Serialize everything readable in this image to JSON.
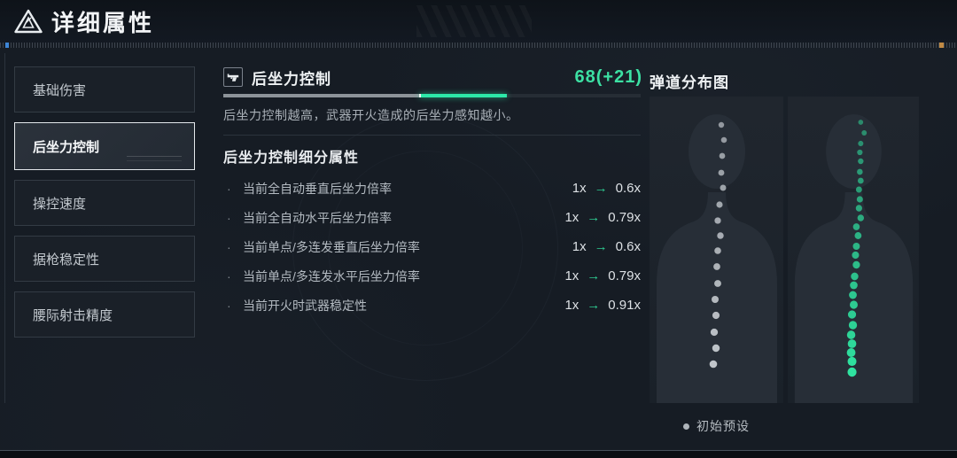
{
  "header": {
    "title": "详细属性"
  },
  "sidebar": {
    "items": [
      {
        "label": "基础伤害",
        "selected": false
      },
      {
        "label": "后坐力控制",
        "selected": true
      },
      {
        "label": "操控速度",
        "selected": false
      },
      {
        "label": "据枪稳定性",
        "selected": false
      },
      {
        "label": "腰际射击精度",
        "selected": false
      }
    ]
  },
  "main": {
    "stat": {
      "icon": "pistol-icon",
      "title": "后坐力控制",
      "value": 68,
      "bonus": 21,
      "max": 100,
      "value_label": "68(+21)",
      "description": "后坐力控制越高，武器开火造成的后坐力感知越小。"
    },
    "details": {
      "title": "后坐力控制细分属性",
      "bullet_glyph": "·",
      "arrow_glyph": "→",
      "rows": [
        {
          "label": "当前全自动垂直后坐力倍率",
          "from": "1x",
          "to": "0.6x"
        },
        {
          "label": "当前全自动水平后坐力倍率",
          "from": "1x",
          "to": "0.79x"
        },
        {
          "label": "当前单点/多连发垂直后坐力倍率",
          "from": "1x",
          "to": "0.6x"
        },
        {
          "label": "当前单点/多连发水平后坐力倍率",
          "from": "1x",
          "to": "0.79x"
        },
        {
          "label": "当前开火时武器稳定性",
          "from": "1x",
          "to": "0.91x"
        }
      ]
    }
  },
  "colors": {
    "accent_teal": "#3ce0a3",
    "bar_base_gray": "#8d9399",
    "bar_bonus_teal": "#2de8a8",
    "preset_dot_gray": "#c0c5ca",
    "current_dot_green": "#2fe3a0"
  },
  "trajectory": {
    "title": "弹道分布图",
    "legend_label": "初始预设",
    "legend_color": "#aeb4ba",
    "panels": [
      {
        "name": "initial-preset",
        "color": "#c0c5ca",
        "r_start": 3.2,
        "r_end": 4.3,
        "opacity_start": 0.7,
        "opacity_end": 1,
        "points": [
          [
            81,
            32
          ],
          [
            84,
            49
          ],
          [
            82,
            67
          ],
          [
            81,
            86
          ],
          [
            83,
            103
          ],
          [
            79,
            122
          ],
          [
            77,
            140
          ],
          [
            80,
            157
          ],
          [
            77,
            174
          ],
          [
            76,
            192
          ],
          [
            77,
            211
          ],
          [
            74,
            229
          ],
          [
            75,
            247
          ],
          [
            73,
            266
          ],
          [
            75,
            284
          ],
          [
            72,
            302
          ]
        ]
      },
      {
        "name": "current",
        "color": "#2fe3a0",
        "r_start": 2.9,
        "r_end": 5.2,
        "opacity_start": 0.5,
        "opacity_end": 1,
        "points": [
          [
            84,
            29
          ],
          [
            88,
            41
          ],
          [
            84,
            53
          ],
          [
            83,
            63
          ],
          [
            84,
            73
          ],
          [
            83,
            85
          ],
          [
            84,
            95
          ],
          [
            82,
            105
          ],
          [
            83,
            116
          ],
          [
            82,
            126
          ],
          [
            84,
            137
          ],
          [
            79,
            147
          ],
          [
            81,
            157
          ],
          [
            79,
            169
          ],
          [
            78,
            179
          ],
          [
            79,
            190
          ],
          [
            77,
            203
          ],
          [
            76,
            213
          ],
          [
            75,
            224
          ],
          [
            76,
            235
          ],
          [
            74,
            246
          ],
          [
            75,
            258
          ],
          [
            73,
            269
          ],
          [
            74,
            279
          ],
          [
            73,
            289
          ],
          [
            74,
            299
          ],
          [
            74,
            311
          ]
        ]
      }
    ]
  }
}
